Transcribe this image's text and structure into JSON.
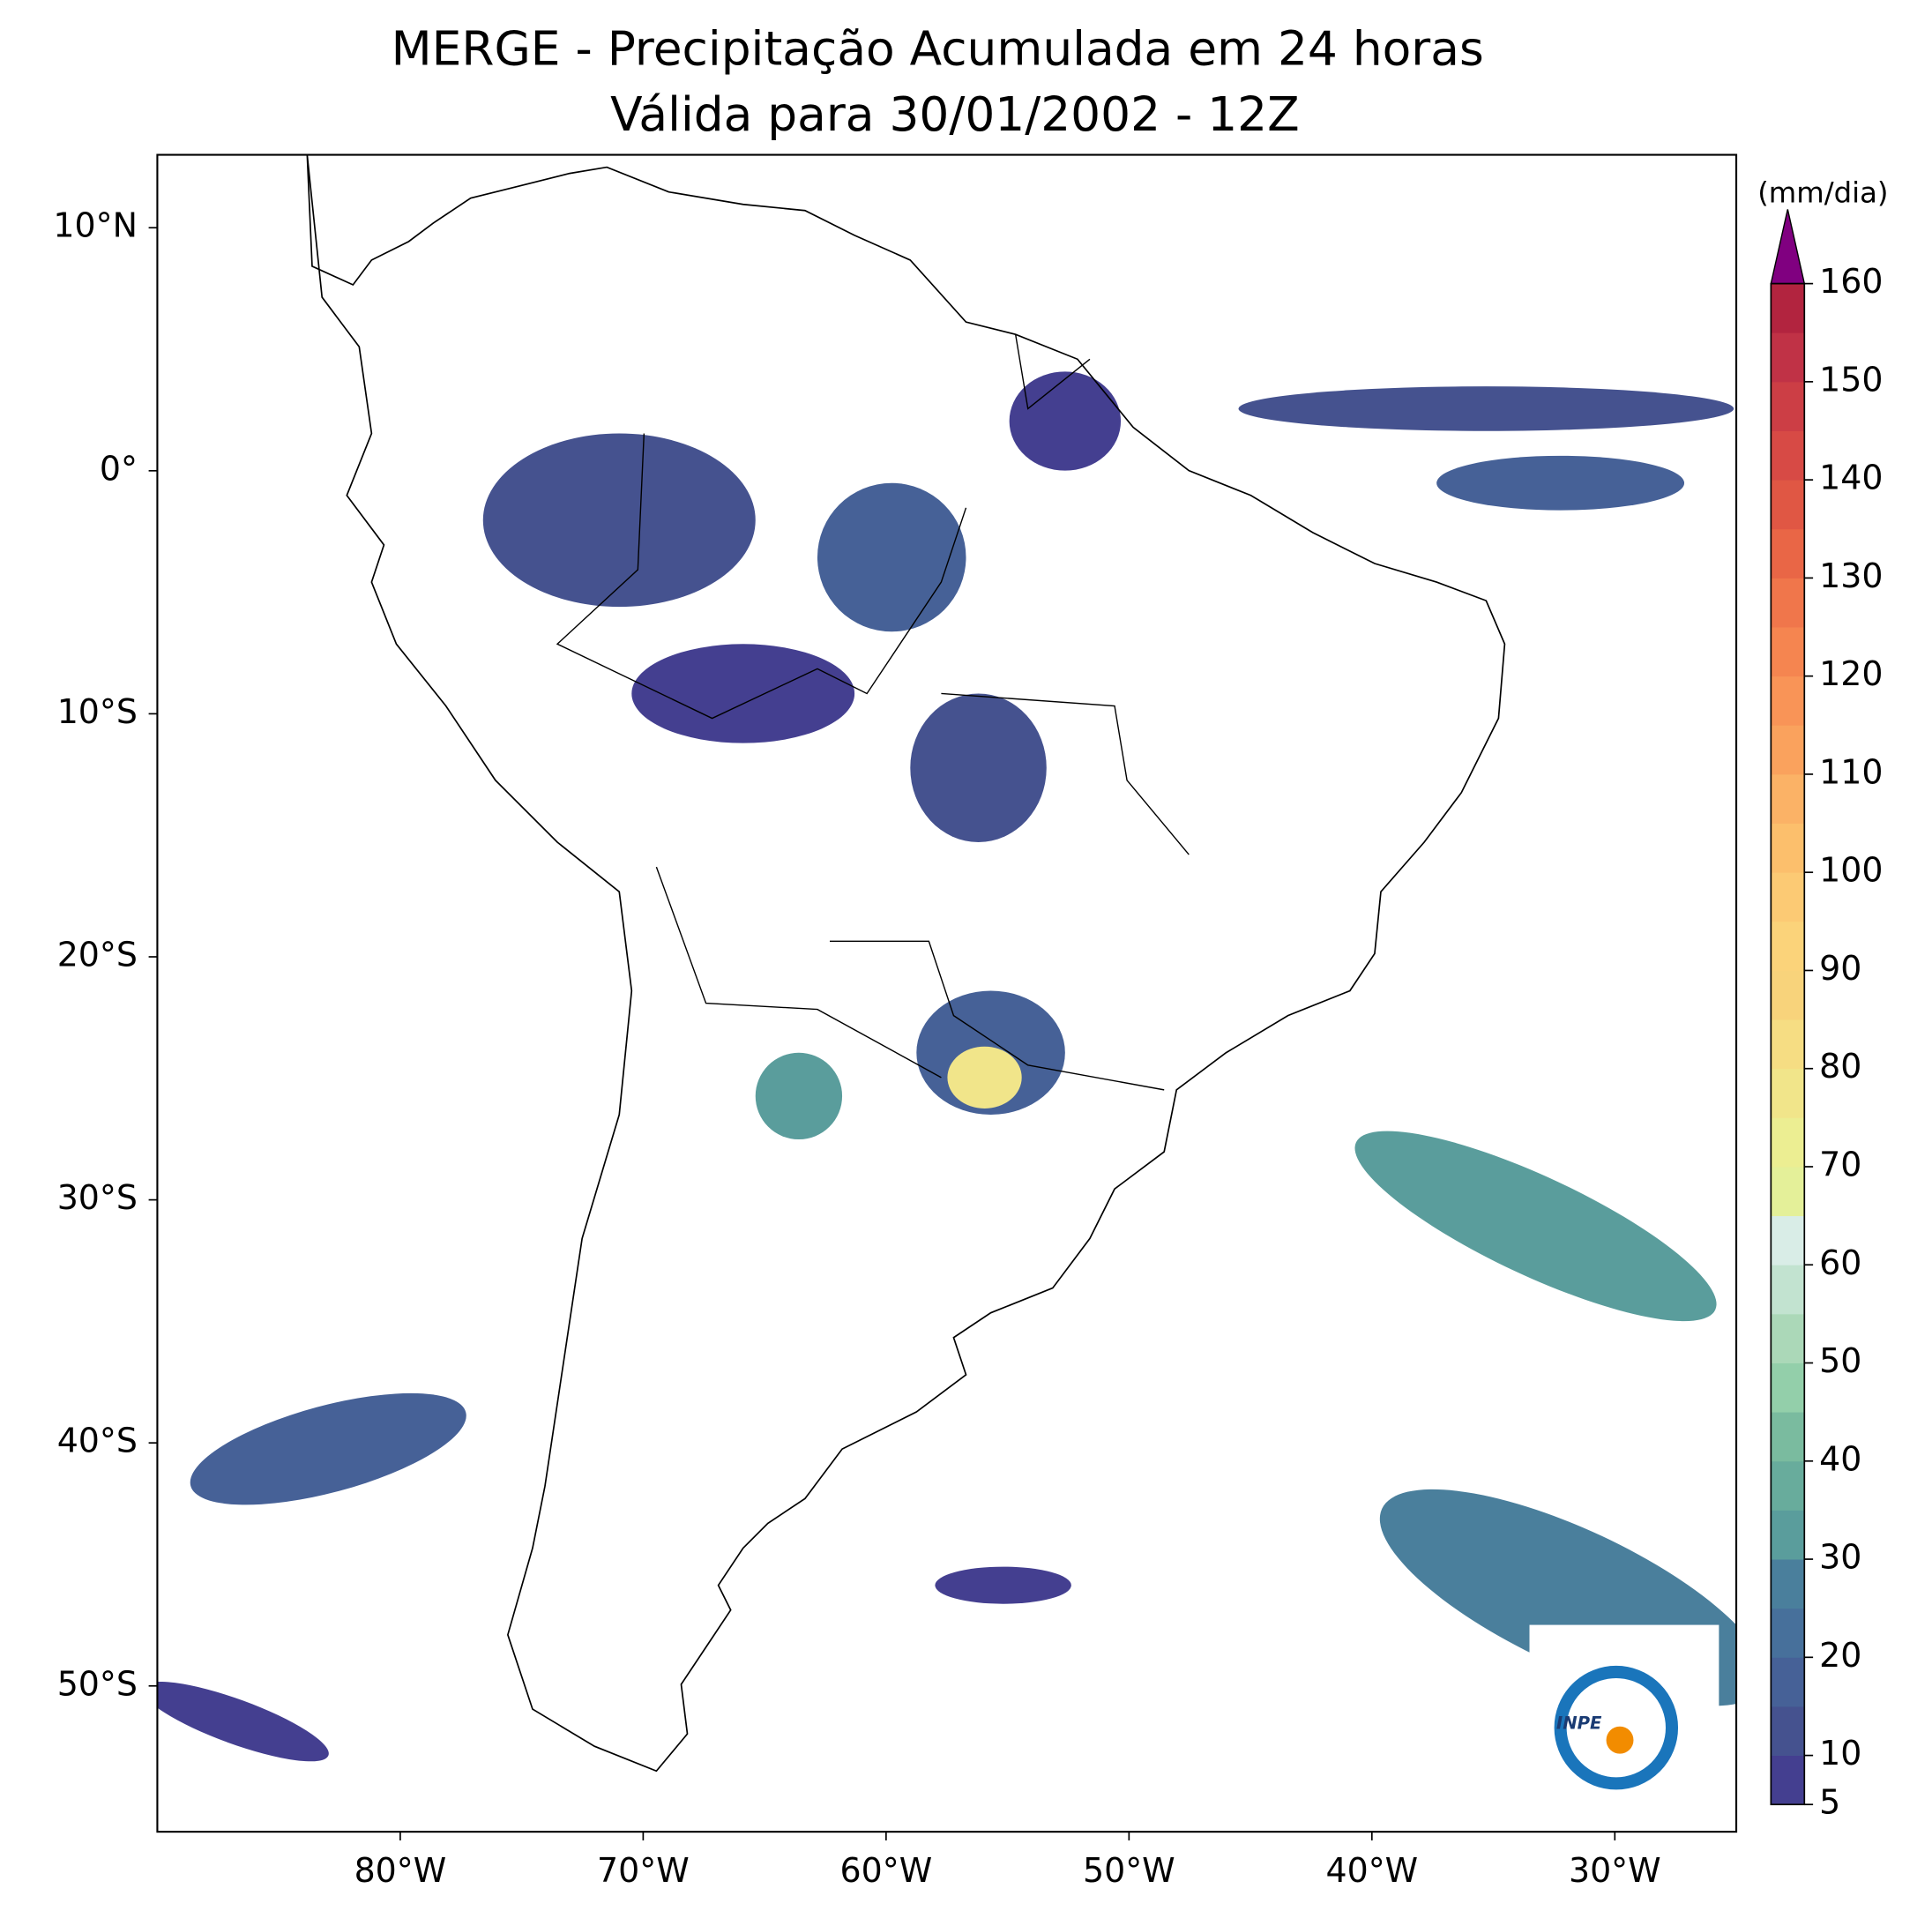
{
  "title": "MERGE - Precipitação Acumulada em 24 horas",
  "subtitle": "Válida para 30/01/2002 - 12Z",
  "map": {
    "lon_range": [
      -90,
      -25
    ],
    "lat_range": [
      -56,
      13
    ],
    "lon_ticks": [
      {
        "value": -80,
        "label": "80°W"
      },
      {
        "value": -70,
        "label": "70°W"
      },
      {
        "value": -60,
        "label": "60°W"
      },
      {
        "value": -50,
        "label": "50°W"
      },
      {
        "value": -40,
        "label": "40°W"
      },
      {
        "value": -30,
        "label": "30°W"
      }
    ],
    "lat_ticks": [
      {
        "value": 10,
        "label": "10°N"
      },
      {
        "value": 0,
        "label": "0°"
      },
      {
        "value": -10,
        "label": "10°S"
      },
      {
        "value": -20,
        "label": "20°S"
      },
      {
        "value": -30,
        "label": "30°S"
      },
      {
        "value": -40,
        "label": "40°S"
      },
      {
        "value": -50,
        "label": "50°S"
      }
    ]
  },
  "colorbar": {
    "unit": "(mm/dia)",
    "ticks": [
      5,
      10,
      20,
      30,
      40,
      50,
      60,
      70,
      80,
      90,
      100,
      110,
      120,
      130,
      140,
      150,
      160
    ],
    "levels": [
      5,
      10,
      15,
      20,
      25,
      30,
      35,
      40,
      45,
      50,
      55,
      60,
      65,
      70,
      75,
      80,
      85,
      90,
      95,
      100,
      105,
      110,
      115,
      120,
      125,
      130,
      135,
      140,
      145,
      150,
      155,
      160
    ],
    "colors": [
      "#443f90",
      "#45528f",
      "#466197",
      "#47709b",
      "#4a7f9c",
      "#5a9d9c",
      "#68ac9c",
      "#7abb9f",
      "#93cfaa",
      "#abd8b8",
      "#c2e3d0",
      "#d9ede7",
      "#e4f099",
      "#ecee92",
      "#f1e58a",
      "#f6dd83",
      "#f8d37b",
      "#fbd37a",
      "#fcca74",
      "#fcbf6c",
      "#fbb266",
      "#faa25d",
      "#f99457",
      "#f58550",
      "#f0764b",
      "#e96646",
      "#e05744",
      "#d74a45",
      "#cc3e45",
      "#c03246",
      "#b2243f"
    ],
    "extend_color": "#800080"
  },
  "logo": {
    "text": "INPE"
  }
}
